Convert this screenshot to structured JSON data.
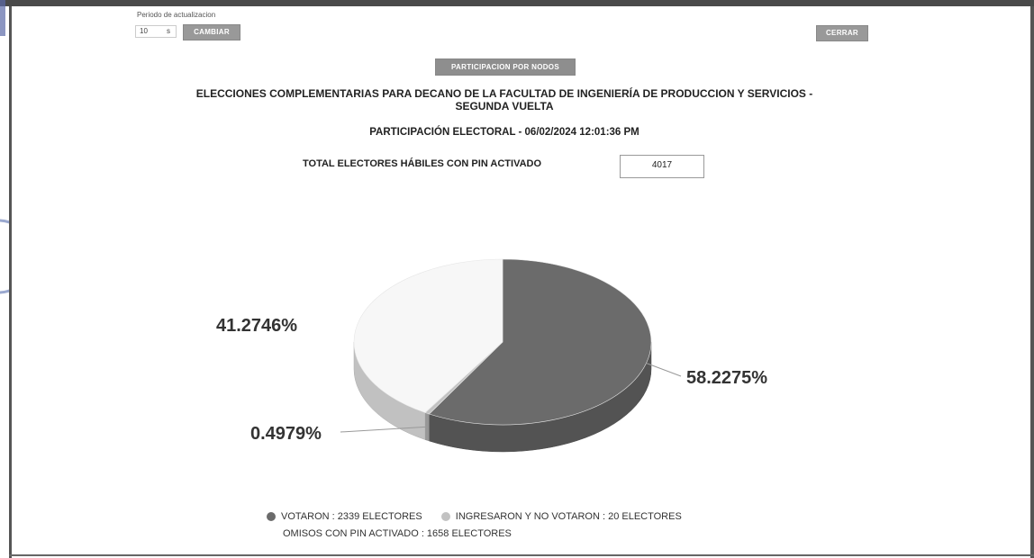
{
  "header": {
    "period_label": "Periodo de actualizacion",
    "period_value": "10",
    "period_unit": "s",
    "cambiar_button": "CAMBIAR",
    "cerrar_button": "CERRAR",
    "nodos_button": "PARTICIPACION POR NODOS"
  },
  "report": {
    "title_line1": "ELECCIONES COMPLEMENTARIAS PARA DECANO DE LA FACULTAD DE INGENIERÍA DE PRODUCCION Y SERVICIOS -",
    "title_line2": "SEGUNDA VUELTA",
    "subtitle": "PARTICIPACIÓN ELECTORAL - 06/02/2024 12:01:36 PM",
    "total_label": "TOTAL ELECTORES HÁBILES CON PIN ACTIVADO",
    "total_value": "4017"
  },
  "chart_data": {
    "type": "pie",
    "title": "",
    "series": [
      {
        "name": "VOTARON : 2339 ELECTORES",
        "value": 2339,
        "percent_label": "58.2275%",
        "color": "#6b6b6b"
      },
      {
        "name": "INGRESARON Y NO VOTARON : 20 ELECTORES",
        "value": 20,
        "percent_label": "0.4979%",
        "color": "#c2c2c2"
      },
      {
        "name": "OMISOS CON PIN ACTIVADO : 1658 ELECTORES",
        "value": 1658,
        "percent_label": "41.2746%",
        "color": "#f7f7f7"
      }
    ],
    "legend_position": "bottom",
    "three_d": true
  },
  "legend": {
    "items": [
      {
        "label": "VOTARON : 2339 ELECTORES",
        "color": "#6b6b6b"
      },
      {
        "label": "INGRESARON Y NO VOTARON : 20 ELECTORES",
        "color": "#c2c2c2"
      },
      {
        "label": "OMISOS CON PIN ACTIVADO : 1658 ELECTORES",
        "color": "#f7f7f7"
      }
    ]
  }
}
